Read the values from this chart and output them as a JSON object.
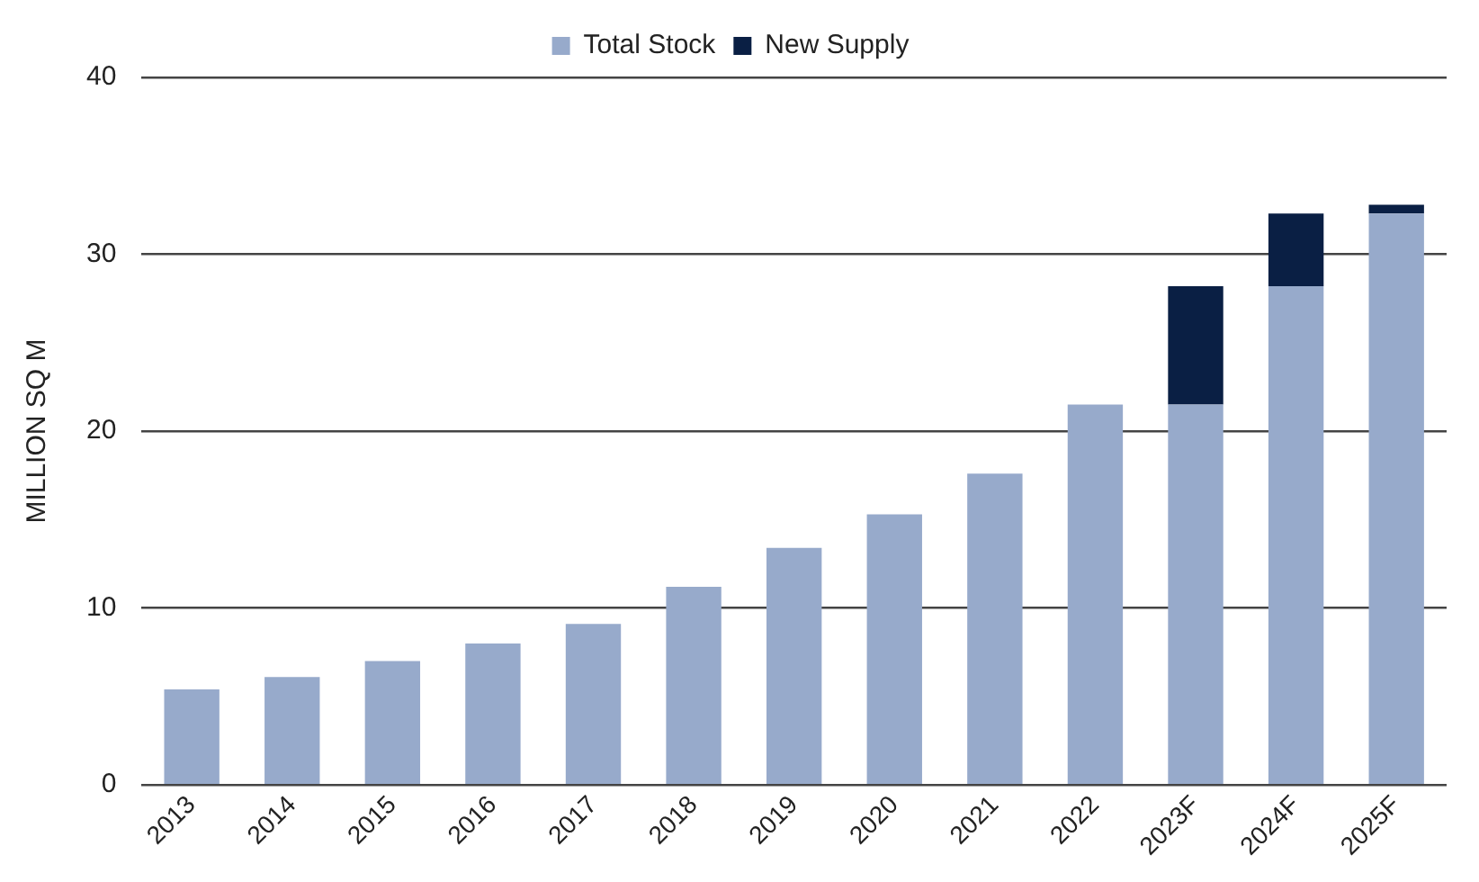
{
  "chart_data": {
    "type": "bar",
    "stacked": true,
    "ylabel": "MILLION SQ M",
    "categories": [
      "2013",
      "2014",
      "2015",
      "2016",
      "2017",
      "2018",
      "2019",
      "2020",
      "2021",
      "2022",
      "2023F",
      "2024F",
      "2025F"
    ],
    "series": [
      {
        "name": "Total Stock",
        "color": "#97aacb",
        "values": [
          5.4,
          6.1,
          7.0,
          8.0,
          9.1,
          11.2,
          13.4,
          15.3,
          17.6,
          21.5,
          21.5,
          28.2,
          32.3
        ]
      },
      {
        "name": "New Supply",
        "color": "#0a1f44",
        "values": [
          null,
          null,
          null,
          null,
          null,
          null,
          null,
          null,
          null,
          null,
          6.7,
          4.1,
          0.5
        ]
      }
    ],
    "ylim": [
      0,
      40
    ],
    "yticks": [
      0,
      10,
      20,
      30,
      40
    ],
    "grid": "y",
    "legend": "top"
  }
}
